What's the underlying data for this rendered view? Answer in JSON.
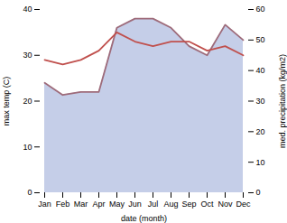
{
  "chart_data": {
    "type": "line",
    "xlabel": "date (month)",
    "ylabel": "max temp (C)",
    "y2label": "med. precipitation (kg/m2)",
    "categories": [
      "Jan",
      "Feb",
      "Mar",
      "Apr",
      "May",
      "Jun",
      "Jul",
      "Aug",
      "Sep",
      "Oct",
      "Nov",
      "Dec"
    ],
    "series": [
      {
        "type": "area",
        "axis": "y2",
        "color": "#c5cee8",
        "values": [
          36,
          32,
          33,
          33,
          54,
          57,
          57,
          54,
          48,
          45,
          55,
          50
        ]
      },
      {
        "type": "line",
        "axis": "y2",
        "color": "#9e6b7a",
        "values": [
          36,
          32,
          33,
          33,
          54,
          57,
          57,
          54,
          48,
          45,
          55,
          50
        ]
      },
      {
        "type": "line",
        "color": "#c0504d",
        "values": [
          29,
          28,
          29,
          31,
          35,
          33,
          32,
          33,
          33,
          31,
          32,
          30
        ]
      }
    ],
    "ylim": [
      0,
      40
    ],
    "yticks": [
      0,
      10,
      20,
      30,
      40
    ],
    "y2lim": [
      0,
      60
    ],
    "y2ticks": [
      0,
      10,
      20,
      30,
      40,
      50,
      60
    ]
  }
}
